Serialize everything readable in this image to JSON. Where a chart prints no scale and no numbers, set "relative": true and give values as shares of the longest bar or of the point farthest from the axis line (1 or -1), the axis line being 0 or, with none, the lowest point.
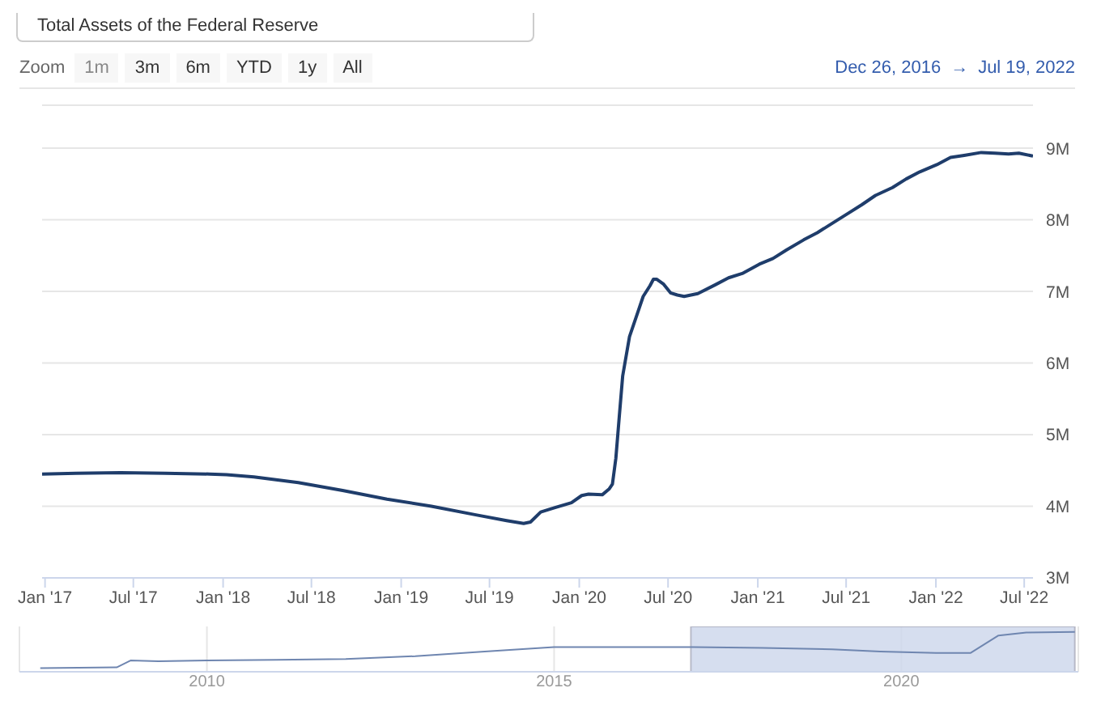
{
  "chart_data": [
    {
      "type": "line",
      "title": "Total Assets of the Federal Reserve",
      "annotations": [
        "Zoom",
        "1m",
        "3m",
        "6m",
        "YTD",
        "1y",
        "All",
        "Dec 26, 2016",
        "→",
        "Jul 19, 2022"
      ],
      "x": [
        "2016-12-26",
        "2017-03-06",
        "2017-06-05",
        "2017-09-04",
        "2017-12-04",
        "2018-01-08",
        "2018-03-05",
        "2018-06-04",
        "2018-09-03",
        "2018-12-03",
        "2019-03-04",
        "2019-06-03",
        "2019-08-05",
        "2019-09-09",
        "2019-09-23",
        "2019-10-14",
        "2019-11-11",
        "2019-12-16",
        "2020-01-06",
        "2020-01-20",
        "2020-02-17",
        "2020-03-02",
        "2020-03-09",
        "2020-03-16",
        "2020-03-23",
        "2020-03-30",
        "2020-04-13",
        "2020-04-27",
        "2020-05-11",
        "2020-05-25",
        "2020-06-01",
        "2020-06-08",
        "2020-06-22",
        "2020-07-06",
        "2020-07-20",
        "2020-08-03",
        "2020-08-31",
        "2020-10-05",
        "2020-11-02",
        "2020-11-30",
        "2021-01-04",
        "2021-02-01",
        "2021-03-01",
        "2021-04-05",
        "2021-05-03",
        "2021-05-31",
        "2021-07-05",
        "2021-08-02",
        "2021-08-30",
        "2021-10-04",
        "2021-11-01",
        "2021-11-29",
        "2022-01-03",
        "2022-01-31",
        "2022-02-28",
        "2022-04-04",
        "2022-05-02",
        "2022-05-30",
        "2022-06-20",
        "2022-07-19"
      ],
      "series": [
        {
          "color": "#1f3d6b",
          "values": [
            4.45,
            4.46,
            4.47,
            4.46,
            4.45,
            4.44,
            4.41,
            4.33,
            4.22,
            4.1,
            4.0,
            3.88,
            3.8,
            3.76,
            3.78,
            3.92,
            3.98,
            4.05,
            4.15,
            4.17,
            4.16,
            4.24,
            4.31,
            4.67,
            5.25,
            5.82,
            6.37,
            6.65,
            6.93,
            7.08,
            7.17,
            7.17,
            7.1,
            6.98,
            6.95,
            6.93,
            6.97,
            7.09,
            7.19,
            7.25,
            7.38,
            7.46,
            7.58,
            7.72,
            7.82,
            7.94,
            8.09,
            8.21,
            8.34,
            8.45,
            8.57,
            8.67,
            8.77,
            8.87,
            8.9,
            8.94,
            8.93,
            8.92,
            8.93,
            8.89
          ]
        }
      ],
      "xlim": [
        "2016-12-26",
        "2022-07-19"
      ],
      "xticks": [
        {
          "value": "2017-01-01",
          "label": "Jan '17"
        },
        {
          "value": "2017-07-01",
          "label": "Jul '17"
        },
        {
          "value": "2018-01-01",
          "label": "Jan '18"
        },
        {
          "value": "2018-07-01",
          "label": "Jul '18"
        },
        {
          "value": "2019-01-01",
          "label": "Jan '19"
        },
        {
          "value": "2019-07-01",
          "label": "Jul '19"
        },
        {
          "value": "2020-01-01",
          "label": "Jan '20"
        },
        {
          "value": "2020-07-01",
          "label": "Jul '20"
        },
        {
          "value": "2021-01-01",
          "label": "Jan '21"
        },
        {
          "value": "2021-07-01",
          "label": "Jul '21"
        },
        {
          "value": "2022-01-01",
          "label": "Jan '22"
        },
        {
          "value": "2022-07-01",
          "label": "Jul '22"
        }
      ],
      "ylim": [
        3,
        9.6
      ],
      "yticks": [
        {
          "value": 3,
          "label": "3M"
        },
        {
          "value": 4,
          "label": "4M"
        },
        {
          "value": 5,
          "label": "5M"
        },
        {
          "value": 6,
          "label": "6M"
        },
        {
          "value": 7,
          "label": "7M"
        },
        {
          "value": 8,
          "label": "8M"
        },
        {
          "value": 9,
          "label": "9M"
        }
      ],
      "grid": "y",
      "marker": "none",
      "line_style": "solid"
    },
    {
      "type": "line",
      "relative": true,
      "tick_labels": "x",
      "grid": "x",
      "x": [
        2007.6,
        2008.7,
        2008.9,
        2009.3,
        2010,
        2011,
        2012,
        2013,
        2014,
        2015,
        2016,
        2017,
        2018,
        2019,
        2019.7,
        2020.5,
        2021,
        2021.4,
        2021.8,
        2022.5
      ],
      "series": [
        {
          "color": "#6f86b0",
          "values": [
            0,
            0.02,
            0.21,
            0.19,
            0.21,
            0.23,
            0.25,
            0.33,
            0.46,
            0.58,
            0.58,
            0.58,
            0.56,
            0.52,
            0.46,
            0.42,
            0.42,
            0.9,
            0.98,
            1
          ]
        }
      ],
      "xlim": [
        2007.3,
        2022.55
      ],
      "xticks": [
        2010,
        2015,
        2020
      ],
      "bands": [
        {
          "axis": "x",
          "from": 2016.97,
          "to": 2022.5,
          "color": "#ccd6eb"
        }
      ],
      "marker": "none",
      "line_style": "solid"
    }
  ]
}
